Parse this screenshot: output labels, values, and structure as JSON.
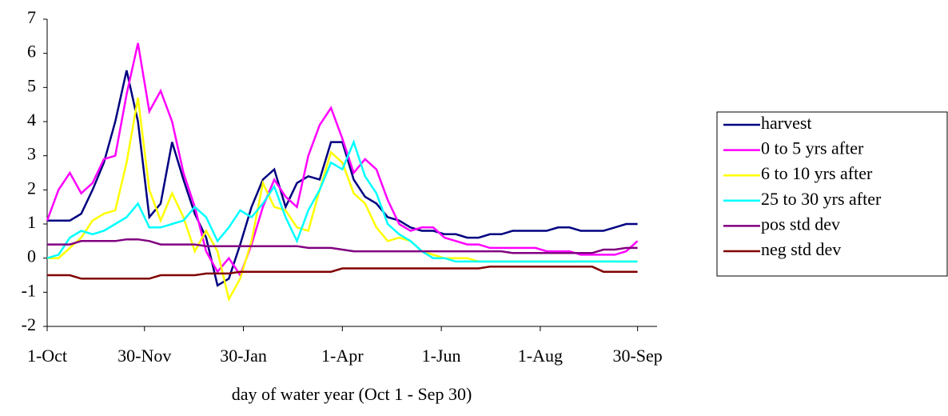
{
  "chart_data": {
    "type": "line",
    "xlabel": "day of water year (Oct 1 - Sep 30)",
    "x": [
      0,
      7,
      14,
      21,
      28,
      35,
      42,
      49,
      56,
      63,
      70,
      77,
      84,
      91,
      98,
      105,
      112,
      119,
      126,
      133,
      140,
      147,
      154,
      161,
      168,
      175,
      182,
      189,
      196,
      203,
      210,
      217,
      224,
      231,
      238,
      245,
      252,
      259,
      266,
      273,
      280,
      287,
      294,
      301,
      308,
      315,
      322,
      329,
      336,
      343,
      350,
      357,
      364
    ],
    "xlim": [
      0,
      376
    ],
    "xticks": [
      {
        "value": 0,
        "label": "1-Oct"
      },
      {
        "value": 60,
        "label": "30-Nov"
      },
      {
        "value": 121,
        "label": "30-Jan"
      },
      {
        "value": 182,
        "label": "1-Apr"
      },
      {
        "value": 243,
        "label": "1-Jun"
      },
      {
        "value": 304,
        "label": "1-Aug"
      },
      {
        "value": 364,
        "label": "30-Sep"
      }
    ],
    "ylim": [
      -2,
      7
    ],
    "yticks": [
      -2,
      -1,
      0,
      1,
      2,
      3,
      4,
      5,
      6,
      7
    ],
    "legend": "right",
    "series": [
      {
        "name": "harvest",
        "color": "#000080",
        "values": [
          1.1,
          1.1,
          1.1,
          1.3,
          2.0,
          2.8,
          4.0,
          5.5,
          4.0,
          1.2,
          1.6,
          3.4,
          2.3,
          1.3,
          0.6,
          -0.8,
          -0.6,
          0.4,
          1.5,
          2.3,
          2.6,
          1.5,
          2.2,
          2.4,
          2.3,
          3.4,
          3.4,
          2.3,
          1.8,
          1.6,
          1.2,
          1.1,
          0.9,
          0.8,
          0.8,
          0.7,
          0.7,
          0.6,
          0.6,
          0.7,
          0.7,
          0.8,
          0.8,
          0.8,
          0.8,
          0.9,
          0.9,
          0.8,
          0.8,
          0.8,
          0.9,
          1.0,
          1.0
        ]
      },
      {
        "name": "0 to 5 yrs after",
        "color": "#ff00ff",
        "values": [
          1.1,
          2.0,
          2.5,
          1.9,
          2.2,
          2.9,
          3.0,
          4.8,
          6.3,
          4.3,
          4.9,
          4.0,
          2.5,
          1.5,
          0.2,
          -0.4,
          0.0,
          -0.5,
          0.4,
          1.5,
          2.3,
          1.8,
          1.5,
          3.0,
          3.9,
          4.4,
          3.5,
          2.5,
          2.9,
          2.6,
          1.7,
          1.0,
          0.8,
          0.9,
          0.9,
          0.6,
          0.5,
          0.4,
          0.4,
          0.3,
          0.3,
          0.3,
          0.3,
          0.3,
          0.2,
          0.2,
          0.2,
          0.1,
          0.1,
          0.1,
          0.1,
          0.2,
          0.5
        ]
      },
      {
        "name": "6 to 10 yrs after",
        "color": "#ffff00",
        "values": [
          0.0,
          0.0,
          0.3,
          0.6,
          1.1,
          1.3,
          1.4,
          2.8,
          4.7,
          2.0,
          1.1,
          1.9,
          1.2,
          0.2,
          0.8,
          0.2,
          -1.2,
          -0.6,
          0.5,
          2.2,
          1.5,
          1.4,
          0.9,
          0.8,
          2.0,
          3.1,
          2.8,
          1.9,
          1.6,
          0.9,
          0.5,
          0.6,
          0.5,
          0.2,
          0.1,
          0.0,
          0.0,
          0.0,
          -0.1,
          -0.1,
          -0.1,
          -0.1,
          -0.1,
          -0.1,
          -0.1,
          -0.1,
          -0.1,
          -0.1,
          -0.1,
          -0.1,
          -0.1,
          -0.1,
          -0.1
        ]
      },
      {
        "name": "25 to 30 yrs after",
        "color": "#00ffff",
        "values": [
          0.0,
          0.1,
          0.6,
          0.8,
          0.7,
          0.8,
          1.0,
          1.2,
          1.6,
          0.9,
          0.9,
          1.0,
          1.1,
          1.5,
          1.2,
          0.5,
          0.9,
          1.4,
          1.2,
          1.6,
          2.1,
          1.2,
          0.5,
          1.4,
          2.0,
          2.8,
          2.6,
          3.4,
          2.4,
          1.9,
          1.0,
          0.7,
          0.5,
          0.2,
          0.0,
          0.0,
          -0.1,
          -0.1,
          -0.1,
          -0.1,
          -0.1,
          -0.1,
          -0.1,
          -0.1,
          -0.1,
          -0.1,
          -0.1,
          -0.1,
          -0.1,
          -0.1,
          -0.1,
          -0.1,
          -0.1
        ]
      },
      {
        "name": "pos std dev",
        "color": "#800080",
        "values": [
          0.4,
          0.4,
          0.4,
          0.5,
          0.5,
          0.5,
          0.5,
          0.55,
          0.55,
          0.5,
          0.4,
          0.4,
          0.4,
          0.4,
          0.35,
          0.35,
          0.35,
          0.35,
          0.35,
          0.35,
          0.35,
          0.35,
          0.35,
          0.3,
          0.3,
          0.3,
          0.25,
          0.2,
          0.2,
          0.2,
          0.2,
          0.2,
          0.2,
          0.2,
          0.2,
          0.2,
          0.2,
          0.2,
          0.2,
          0.2,
          0.2,
          0.15,
          0.15,
          0.15,
          0.15,
          0.15,
          0.15,
          0.15,
          0.15,
          0.25,
          0.25,
          0.3,
          0.3
        ]
      },
      {
        "name": "neg std dev",
        "color": "#800000",
        "values": [
          -0.5,
          -0.5,
          -0.5,
          -0.6,
          -0.6,
          -0.6,
          -0.6,
          -0.6,
          -0.6,
          -0.6,
          -0.5,
          -0.5,
          -0.5,
          -0.5,
          -0.45,
          -0.45,
          -0.45,
          -0.4,
          -0.4,
          -0.4,
          -0.4,
          -0.4,
          -0.4,
          -0.4,
          -0.4,
          -0.4,
          -0.3,
          -0.3,
          -0.3,
          -0.3,
          -0.3,
          -0.3,
          -0.3,
          -0.3,
          -0.3,
          -0.3,
          -0.3,
          -0.3,
          -0.3,
          -0.25,
          -0.25,
          -0.25,
          -0.25,
          -0.25,
          -0.25,
          -0.25,
          -0.25,
          -0.25,
          -0.25,
          -0.4,
          -0.4,
          -0.4,
          -0.4
        ]
      }
    ]
  }
}
